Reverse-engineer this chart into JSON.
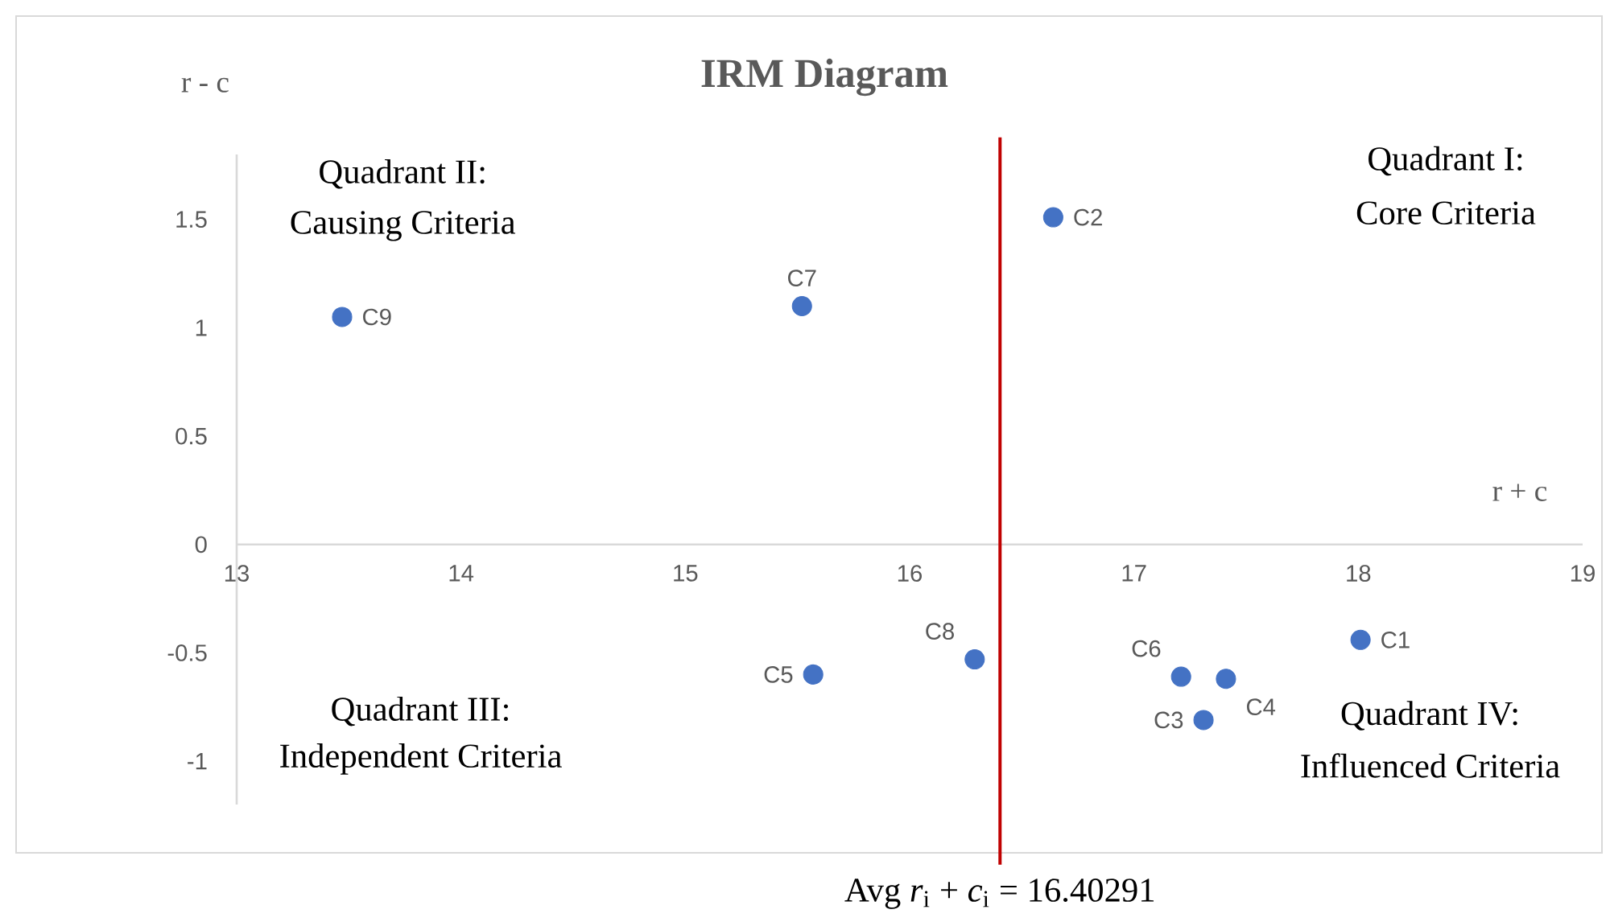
{
  "chart_data": {
    "type": "scatter",
    "title": "IRM Diagram",
    "xlabel": "r + c",
    "ylabel": "r - c",
    "xlim": [
      13,
      19
    ],
    "ylim": [
      -1.2,
      1.8
    ],
    "xticks": [
      13,
      14,
      15,
      16,
      17,
      18,
      19
    ],
    "yticks": [
      -1,
      -0.5,
      0,
      0.5,
      1,
      1.5
    ],
    "grid": false,
    "marker": "circle",
    "series": [
      {
        "name": "C1",
        "color": "#4472c4",
        "x": [
          18.01
        ],
        "values": [
          -0.44
        ]
      },
      {
        "name": "C2",
        "color": "#4472c4",
        "x": [
          16.64
        ],
        "values": [
          1.51
        ]
      },
      {
        "name": "C3",
        "color": "#4472c4",
        "x": [
          17.31
        ],
        "values": [
          -0.81
        ]
      },
      {
        "name": "C4",
        "color": "#4472c4",
        "x": [
          17.41
        ],
        "values": [
          -0.62
        ]
      },
      {
        "name": "C5",
        "color": "#4472c4",
        "x": [
          15.57
        ],
        "values": [
          -0.6
        ]
      },
      {
        "name": "C6",
        "color": "#4472c4",
        "x": [
          17.21
        ],
        "values": [
          -0.61
        ]
      },
      {
        "name": "C7",
        "color": "#4472c4",
        "x": [
          15.52
        ],
        "values": [
          1.1
        ]
      },
      {
        "name": "C8",
        "color": "#4472c4",
        "x": [
          16.29
        ],
        "values": [
          -0.53
        ]
      },
      {
        "name": "C9",
        "color": "#4472c4",
        "x": [
          13.47
        ],
        "values": [
          1.05
        ]
      }
    ],
    "ref_lines": [
      {
        "axis": "x",
        "value": 16.40291,
        "label": "Avg *r*$_{i}$ + *c*$_{i}$ = 16.40291",
        "color": "#c00000"
      }
    ],
    "annotations": [
      "Quadrant I:",
      "Core Criteria",
      "Quadrant II:",
      "Causing Criteria",
      "Quadrant III:",
      "Independent  Criteria",
      "Quadrant IV:",
      "Influenced  Criteria"
    ]
  }
}
